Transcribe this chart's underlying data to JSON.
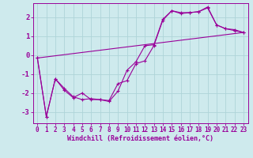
{
  "background_color": "#ceeaed",
  "grid_color": "#aed4d8",
  "line_color": "#990099",
  "xlabel": "Windchill (Refroidissement éolien,°C)",
  "xlabel_fontsize": 6.0,
  "tick_fontsize": 5.5,
  "ytick_fontsize": 6.5,
  "xlim": [
    -0.5,
    23.5
  ],
  "ylim": [
    -3.6,
    2.75
  ],
  "yticks": [
    -3,
    -2,
    -1,
    0,
    1,
    2
  ],
  "xticks": [
    0,
    1,
    2,
    3,
    4,
    5,
    6,
    7,
    8,
    9,
    10,
    11,
    12,
    13,
    14,
    15,
    16,
    17,
    18,
    19,
    20,
    21,
    22,
    23
  ],
  "line1_x": [
    0,
    1,
    2,
    3,
    4,
    5,
    6,
    7,
    8,
    9,
    10,
    11,
    12,
    13,
    14,
    15,
    16,
    17,
    18,
    19,
    20,
    21,
    22,
    23
  ],
  "line1_y": [
    -0.15,
    -3.25,
    -1.25,
    -1.75,
    -2.2,
    -2.35,
    -2.3,
    -2.35,
    -2.45,
    -1.9,
    -0.8,
    -0.35,
    0.5,
    0.55,
    1.9,
    2.35,
    2.25,
    2.25,
    2.3,
    2.55,
    1.6,
    1.4,
    1.35,
    1.2
  ],
  "line2_x": [
    0,
    1,
    2,
    3,
    4,
    5,
    6,
    7,
    8,
    9,
    10,
    11,
    12,
    13,
    14,
    15,
    16,
    17,
    18,
    19,
    20,
    21,
    22,
    23
  ],
  "line2_y": [
    -0.15,
    -3.25,
    -1.25,
    -1.85,
    -2.25,
    -2.0,
    -2.35,
    -2.35,
    -2.4,
    -1.5,
    -1.35,
    -0.45,
    -0.3,
    0.5,
    1.85,
    2.35,
    2.2,
    2.25,
    2.3,
    2.5,
    1.6,
    1.4,
    1.3,
    1.2
  ],
  "line3_x": [
    0,
    23
  ],
  "line3_y": [
    -0.15,
    1.2
  ]
}
